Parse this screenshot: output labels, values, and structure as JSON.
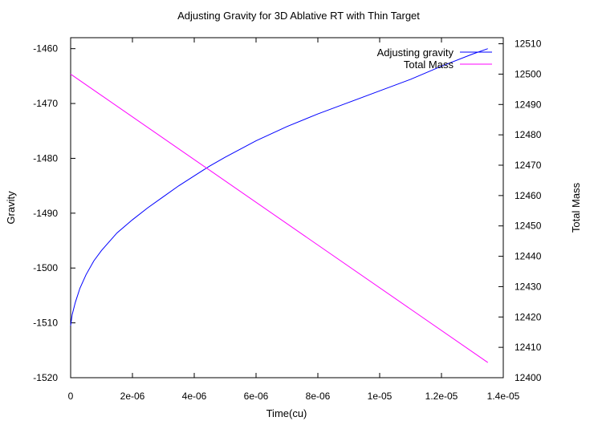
{
  "chart_data": {
    "type": "line",
    "title": "Adjusting Gravity for 3D Ablative RT with Thin Target",
    "xlabel": "Time(cu)",
    "ylabel": "Gravity",
    "y2label": "Total Mass",
    "xlim": [
      0,
      1.4e-05
    ],
    "ylim": [
      -1520,
      -1458
    ],
    "y2lim": [
      12400,
      12512
    ],
    "x_ticks": [
      {
        "value": 0,
        "label": "0"
      },
      {
        "value": 2e-06,
        "label": "2e-06"
      },
      {
        "value": 4e-06,
        "label": "4e-06"
      },
      {
        "value": 6e-06,
        "label": "6e-06"
      },
      {
        "value": 8e-06,
        "label": "8e-06"
      },
      {
        "value": 1e-05,
        "label": "1e-05"
      },
      {
        "value": 1.2e-05,
        "label": "1.2e-05"
      },
      {
        "value": 1.4e-05,
        "label": "1.4e-05"
      }
    ],
    "y_ticks": [
      {
        "value": -1460,
        "label": "-1460"
      },
      {
        "value": -1470,
        "label": "-1470"
      },
      {
        "value": -1480,
        "label": "-1480"
      },
      {
        "value": -1490,
        "label": "-1490"
      },
      {
        "value": -1500,
        "label": "-1500"
      },
      {
        "value": -1510,
        "label": "-1510"
      },
      {
        "value": -1520,
        "label": "-1520"
      }
    ],
    "y2_ticks": [
      {
        "value": 12510,
        "label": "12510"
      },
      {
        "value": 12500,
        "label": "12500"
      },
      {
        "value": 12490,
        "label": "12490"
      },
      {
        "value": 12480,
        "label": "12480"
      },
      {
        "value": 12470,
        "label": "12470"
      },
      {
        "value": 12460,
        "label": "12460"
      },
      {
        "value": 12450,
        "label": "12450"
      },
      {
        "value": 12440,
        "label": "12440"
      },
      {
        "value": 12430,
        "label": "12430"
      },
      {
        "value": 12420,
        "label": "12420"
      },
      {
        "value": 12410,
        "label": "12410"
      },
      {
        "value": 12400,
        "label": "12400"
      }
    ],
    "legend_position": "top-right",
    "grid": false,
    "series": [
      {
        "name": "Adjusting gravity",
        "axis": "left",
        "color": "#0000ff",
        "x": [
          0,
          5e-08,
          1.5e-07,
          3e-07,
          5e-07,
          7.5e-07,
          1e-06,
          1.5e-06,
          2e-06,
          2.5e-06,
          3e-06,
          3.5e-06,
          4e-06,
          4.5e-06,
          5e-06,
          6e-06,
          7e-06,
          8e-06,
          9e-06,
          1e-05,
          1.1e-05,
          1.2e-05,
          1.3e-05,
          1.35e-05
        ],
        "y": [
          -1510.5,
          -1508.5,
          -1506.3,
          -1503.7,
          -1501.2,
          -1498.7,
          -1496.8,
          -1493.6,
          -1491.2,
          -1489.0,
          -1487.0,
          -1485.0,
          -1483.2,
          -1481.4,
          -1479.8,
          -1476.8,
          -1474.2,
          -1471.9,
          -1469.8,
          -1467.7,
          -1465.6,
          -1463.2,
          -1461.0,
          -1460.0
        ]
      },
      {
        "name": "Total Mass",
        "axis": "right",
        "color": "#ff00ff",
        "x": [
          0,
          1.35e-05
        ],
        "y": [
          12500,
          12405
        ]
      }
    ]
  }
}
